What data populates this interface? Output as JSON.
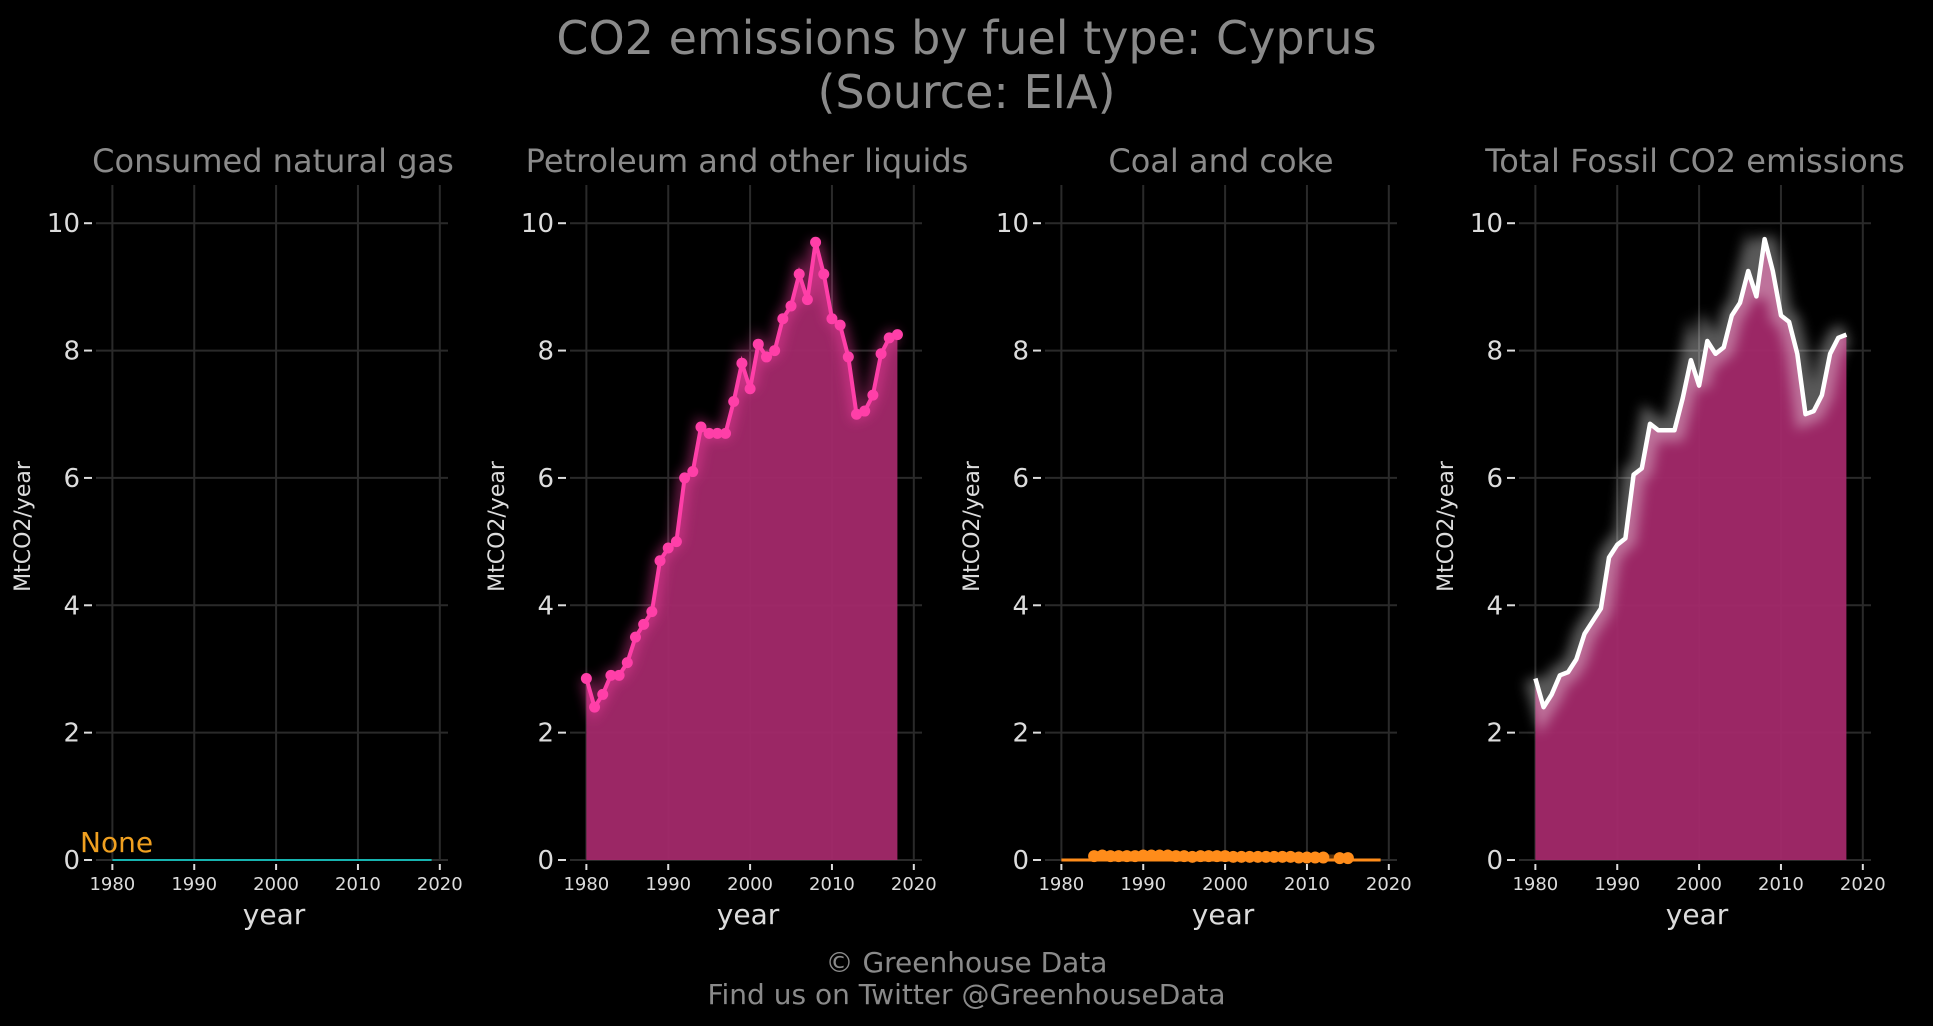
{
  "title_line1": "CO2 emissions by fuel type: Cyprus",
  "title_line2": "(Source: EIA)",
  "footer_line1": "© Greenhouse Data",
  "footer_line2": "Find us on Twitter @GreenhouseData",
  "colors": {
    "background": "#000000",
    "grid": "#2a2a2a",
    "tick_text": "#dcdcdc",
    "panel_title": "#8a8a8a",
    "gas": "#17b3b0",
    "none_label": "#f0a020",
    "petroleum_line": "#ff3fa8",
    "petroleum_fill": "#a3296a",
    "coal": "#ff8c1a",
    "total_line": "#ffffff",
    "total_fill": "#a3296a"
  },
  "chart_data": [
    {
      "type": "line",
      "title": "Consumed natural gas",
      "xlabel": "year",
      "ylabel": "MtCO2/year",
      "xlim": [
        1978,
        2021
      ],
      "ylim": [
        0,
        10.6
      ],
      "xticks": [
        1980,
        1990,
        2000,
        2010,
        2020
      ],
      "yticks": [
        0,
        2,
        4,
        6,
        8,
        10
      ],
      "grid": true,
      "annotation": "None",
      "series": [
        {
          "x": [
            1980,
            2019
          ],
          "values": [
            0,
            0
          ]
        }
      ]
    },
    {
      "type": "area",
      "title": "Petroleum and other liquids",
      "xlabel": "year",
      "ylabel": "MtCO2/year",
      "xlim": [
        1978,
        2021
      ],
      "ylim": [
        0,
        10.6
      ],
      "xticks": [
        1980,
        1990,
        2000,
        2010,
        2020
      ],
      "yticks": [
        0,
        2,
        4,
        6,
        8,
        10
      ],
      "grid": true,
      "markers": true,
      "series": [
        {
          "x": [
            1980,
            1981,
            1982,
            1983,
            1984,
            1985,
            1986,
            1987,
            1988,
            1989,
            1990,
            1991,
            1992,
            1993,
            1994,
            1995,
            1996,
            1997,
            1998,
            1999,
            2000,
            2001,
            2002,
            2003,
            2004,
            2005,
            2006,
            2007,
            2008,
            2009,
            2010,
            2011,
            2012,
            2013,
            2014,
            2015,
            2016,
            2017,
            2018
          ],
          "values": [
            2.85,
            2.4,
            2.6,
            2.9,
            2.9,
            3.1,
            3.5,
            3.7,
            3.9,
            4.7,
            4.9,
            5.0,
            6.0,
            6.1,
            6.8,
            6.7,
            6.7,
            6.7,
            7.2,
            7.8,
            7.4,
            8.1,
            7.9,
            8.0,
            8.5,
            8.7,
            9.2,
            8.8,
            9.7,
            9.2,
            8.5,
            8.4,
            7.9,
            7.0,
            7.05,
            7.3,
            7.95,
            8.2,
            8.25
          ]
        }
      ]
    },
    {
      "type": "scatter",
      "title": "Coal and coke",
      "xlabel": "year",
      "ylabel": "MtCO2/year",
      "xlim": [
        1978,
        2021
      ],
      "ylim": [
        0,
        10.6
      ],
      "xticks": [
        1980,
        1990,
        2000,
        2010,
        2020
      ],
      "yticks": [
        0,
        2,
        4,
        6,
        8,
        10
      ],
      "grid": true,
      "series": [
        {
          "x": [
            1984,
            1985,
            1986,
            1987,
            1988,
            1989,
            1990,
            1991,
            1992,
            1993,
            1994,
            1995,
            1996,
            1997,
            1998,
            1999,
            2000,
            2001,
            2002,
            2003,
            2004,
            2005,
            2006,
            2007,
            2008,
            2009,
            2010,
            2011,
            2012,
            2014,
            2015
          ],
          "values": [
            0.06,
            0.07,
            0.06,
            0.06,
            0.06,
            0.06,
            0.07,
            0.07,
            0.07,
            0.07,
            0.06,
            0.06,
            0.05,
            0.06,
            0.06,
            0.06,
            0.06,
            0.05,
            0.05,
            0.05,
            0.05,
            0.05,
            0.05,
            0.05,
            0.05,
            0.04,
            0.04,
            0.04,
            0.04,
            0.03,
            0.03
          ]
        }
      ]
    },
    {
      "type": "area",
      "title": "Total Fossil CO2 emissions",
      "xlabel": "year",
      "ylabel": "MtCO2/year",
      "xlim": [
        1978,
        2021
      ],
      "ylim": [
        0,
        10.6
      ],
      "xticks": [
        1980,
        1990,
        2000,
        2010,
        2020
      ],
      "yticks": [
        0,
        2,
        4,
        6,
        8,
        10
      ],
      "grid": true,
      "series": [
        {
          "x": [
            1980,
            1981,
            1982,
            1983,
            1984,
            1985,
            1986,
            1987,
            1988,
            1989,
            1990,
            1991,
            1992,
            1993,
            1994,
            1995,
            1996,
            1997,
            1998,
            1999,
            2000,
            2001,
            2002,
            2003,
            2004,
            2005,
            2006,
            2007,
            2008,
            2009,
            2010,
            2011,
            2012,
            2013,
            2014,
            2015,
            2016,
            2017,
            2018
          ],
          "values": [
            2.85,
            2.4,
            2.6,
            2.9,
            2.95,
            3.15,
            3.55,
            3.75,
            3.95,
            4.75,
            4.95,
            5.05,
            6.05,
            6.15,
            6.85,
            6.75,
            6.75,
            6.75,
            7.25,
            7.85,
            7.45,
            8.15,
            7.95,
            8.05,
            8.55,
            8.75,
            9.25,
            8.85,
            9.75,
            9.25,
            8.55,
            8.45,
            7.95,
            7.0,
            7.05,
            7.3,
            7.95,
            8.2,
            8.25
          ]
        }
      ]
    }
  ]
}
